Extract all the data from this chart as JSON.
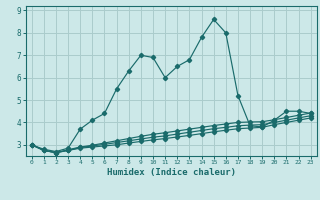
{
  "title": "",
  "xlabel": "Humidex (Indice chaleur)",
  "bg_color": "#cce8e8",
  "grid_color": "#aacccc",
  "line_color": "#1a6b6b",
  "x_values": [
    0,
    1,
    2,
    3,
    4,
    5,
    6,
    7,
    8,
    9,
    10,
    11,
    12,
    13,
    14,
    15,
    16,
    17,
    18,
    19,
    20,
    21,
    22,
    23
  ],
  "series1": [
    3.0,
    2.8,
    2.7,
    2.85,
    3.7,
    4.1,
    4.4,
    5.5,
    6.3,
    7.0,
    6.9,
    6.0,
    6.5,
    6.8,
    7.8,
    8.6,
    8.0,
    5.2,
    3.85,
    3.8,
    4.1,
    4.5,
    4.5,
    4.4
  ],
  "series2": [
    3.0,
    2.75,
    2.65,
    2.75,
    2.85,
    2.9,
    2.95,
    3.0,
    3.08,
    3.15,
    3.22,
    3.28,
    3.35,
    3.42,
    3.5,
    3.58,
    3.65,
    3.72,
    3.75,
    3.78,
    3.9,
    4.0,
    4.1,
    4.2
  ],
  "series3": [
    3.0,
    2.75,
    2.65,
    2.75,
    2.88,
    2.95,
    3.02,
    3.1,
    3.18,
    3.26,
    3.34,
    3.4,
    3.48,
    3.56,
    3.64,
    3.72,
    3.78,
    3.85,
    3.88,
    3.9,
    4.0,
    4.1,
    4.2,
    4.3
  ],
  "series4": [
    3.0,
    2.75,
    2.65,
    2.78,
    2.9,
    2.98,
    3.08,
    3.18,
    3.28,
    3.38,
    3.47,
    3.54,
    3.62,
    3.7,
    3.78,
    3.86,
    3.93,
    4.0,
    4.02,
    4.03,
    4.12,
    4.22,
    4.32,
    4.42
  ],
  "ylim": [
    2.5,
    9.2
  ],
  "yticks": [
    3,
    4,
    5,
    6,
    7,
    8,
    9
  ],
  "xlim": [
    -0.5,
    23.5
  ]
}
